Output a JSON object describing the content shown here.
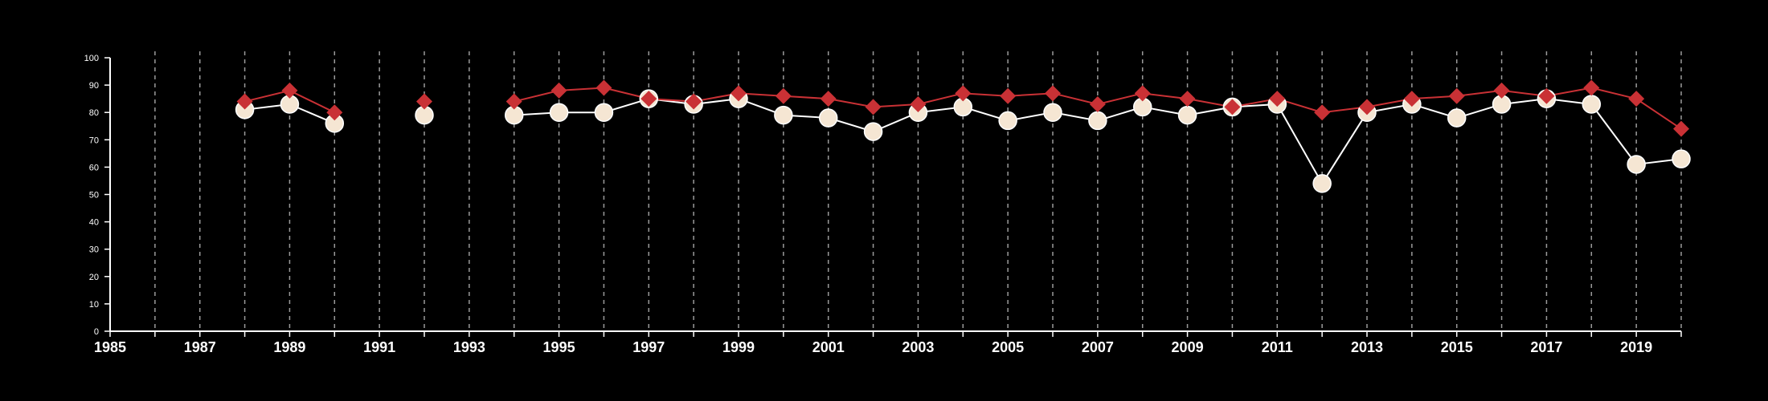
{
  "chart_data": {
    "type": "line",
    "title": "",
    "xlabel": "",
    "ylabel": "",
    "xlim": [
      1985,
      2020
    ],
    "ylim": [
      0,
      100
    ],
    "y_ticks": [
      0,
      10,
      20,
      30,
      40,
      50,
      60,
      70,
      80,
      90,
      100
    ],
    "y_tick_labels": [
      "0",
      "10",
      "20",
      "30",
      "40",
      "50",
      "60",
      "70",
      "80",
      "90",
      "100"
    ],
    "x_ticks": [
      1985,
      1987,
      1989,
      1991,
      1993,
      1995,
      1997,
      1999,
      2001,
      2003,
      2005,
      2007,
      2009,
      2011,
      2013,
      2015,
      2017,
      2019
    ],
    "x_tick_labels": [
      "1985",
      "1987",
      "1989",
      "1991",
      "1993",
      "1995",
      "1997",
      "1999",
      "2001",
      "2003",
      "2005",
      "2007",
      "2009",
      "2011",
      "2013",
      "2015",
      "2017",
      "2019"
    ],
    "vertical_dashed_gridlines": true,
    "legend": "none",
    "series": [
      {
        "marker": "circle",
        "color": "#ffffff",
        "marker_fill": "#f5e6d3",
        "points": [
          [
            1988,
            81
          ],
          [
            1989,
            83
          ],
          [
            1990,
            76
          ],
          null,
          [
            1992,
            79
          ],
          null,
          [
            1994,
            79
          ],
          [
            1995,
            80
          ],
          [
            1996,
            80
          ],
          [
            1997,
            85
          ],
          [
            1998,
            83
          ],
          [
            1999,
            85
          ],
          [
            2000,
            79
          ],
          [
            2001,
            78
          ],
          [
            2002,
            73
          ],
          [
            2003,
            80
          ],
          [
            2004,
            82
          ],
          [
            2005,
            77
          ],
          [
            2006,
            80
          ],
          [
            2007,
            77
          ],
          [
            2008,
            82
          ],
          [
            2009,
            79
          ],
          [
            2010,
            82
          ],
          [
            2011,
            83
          ],
          [
            2012,
            54
          ],
          [
            2013,
            80
          ],
          [
            2014,
            83
          ],
          [
            2015,
            78
          ],
          [
            2016,
            83
          ],
          [
            2017,
            85
          ],
          [
            2018,
            83
          ],
          [
            2019,
            61
          ],
          [
            2020,
            63
          ]
        ]
      },
      {
        "marker": "diamond",
        "color": "#c93135",
        "points": [
          [
            1988,
            84
          ],
          [
            1989,
            88
          ],
          [
            1990,
            80
          ],
          null,
          [
            1992,
            84
          ],
          null,
          [
            1994,
            84
          ],
          [
            1995,
            88
          ],
          [
            1996,
            89
          ],
          [
            1997,
            85
          ],
          [
            1998,
            84
          ],
          [
            1999,
            87
          ],
          [
            2000,
            86
          ],
          [
            2001,
            85
          ],
          [
            2002,
            82
          ],
          [
            2003,
            83
          ],
          [
            2004,
            87
          ],
          [
            2005,
            86
          ],
          [
            2006,
            87
          ],
          [
            2007,
            83
          ],
          [
            2008,
            87
          ],
          [
            2009,
            85
          ],
          [
            2010,
            82
          ],
          [
            2011,
            85
          ],
          [
            2012,
            80
          ],
          [
            2013,
            82
          ],
          [
            2014,
            85
          ],
          [
            2015,
            86
          ],
          [
            2016,
            88
          ],
          [
            2017,
            86
          ],
          [
            2018,
            89
          ],
          [
            2019,
            85
          ],
          [
            2020,
            74
          ]
        ]
      }
    ]
  }
}
